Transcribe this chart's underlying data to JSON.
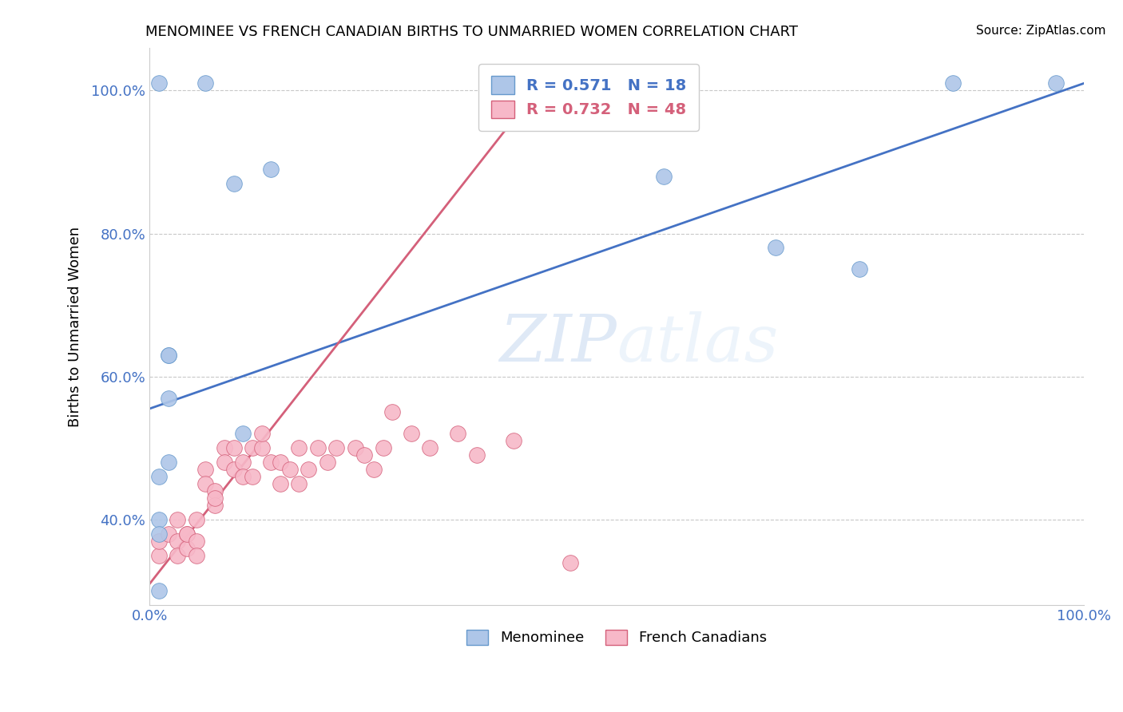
{
  "title": "MENOMINEE VS FRENCH CANADIAN BIRTHS TO UNMARRIED WOMEN CORRELATION CHART",
  "source_text": "Source: ZipAtlas.com",
  "ylabel": "Births to Unmarried Women",
  "watermark_zip": "ZIP",
  "watermark_atlas": "atlas",
  "menominee_R": "0.571",
  "menominee_N": "18",
  "french_R": "0.732",
  "french_N": "48",
  "menominee_color": "#aec6e8",
  "menominee_line_color": "#4472c4",
  "menominee_edge_color": "#6699cc",
  "french_color": "#f7b8c8",
  "french_line_color": "#d4607a",
  "french_edge_color": "#d4607a",
  "background_color": "#ffffff",
  "grid_color": "#c8c8c8",
  "legend_color": "#4472c4",
  "xlim": [
    0.0,
    1.0
  ],
  "ylim": [
    0.28,
    1.06
  ],
  "ytick_vals": [
    0.4,
    0.6,
    0.8,
    1.0
  ],
  "ytick_labels": [
    "40.0%",
    "60.0%",
    "80.0%",
    "100.0%"
  ],
  "xtick_vals": [
    0.0,
    1.0
  ],
  "xtick_labels": [
    "0.0%",
    "100.0%"
  ],
  "menominee_x": [
    0.01,
    0.06,
    0.09,
    0.13,
    0.02,
    0.02,
    0.02,
    0.02,
    0.01,
    0.01,
    0.1,
    0.01,
    0.01,
    0.55,
    0.67,
    0.76,
    0.86,
    0.97
  ],
  "menominee_y": [
    1.01,
    1.01,
    0.87,
    0.89,
    0.63,
    0.57,
    0.63,
    0.48,
    0.46,
    0.4,
    0.52,
    0.38,
    0.3,
    0.88,
    0.78,
    0.75,
    1.01,
    1.01
  ],
  "french_x": [
    0.01,
    0.01,
    0.02,
    0.03,
    0.03,
    0.03,
    0.04,
    0.04,
    0.04,
    0.05,
    0.05,
    0.05,
    0.06,
    0.06,
    0.07,
    0.07,
    0.07,
    0.08,
    0.08,
    0.09,
    0.09,
    0.1,
    0.1,
    0.11,
    0.11,
    0.12,
    0.12,
    0.13,
    0.14,
    0.14,
    0.15,
    0.16,
    0.16,
    0.17,
    0.18,
    0.19,
    0.2,
    0.22,
    0.23,
    0.24,
    0.25,
    0.26,
    0.28,
    0.3,
    0.33,
    0.35,
    0.39,
    0.45
  ],
  "french_y": [
    0.35,
    0.37,
    0.38,
    0.4,
    0.37,
    0.35,
    0.38,
    0.36,
    0.38,
    0.4,
    0.37,
    0.35,
    0.47,
    0.45,
    0.44,
    0.42,
    0.43,
    0.5,
    0.48,
    0.5,
    0.47,
    0.48,
    0.46,
    0.5,
    0.46,
    0.5,
    0.52,
    0.48,
    0.48,
    0.45,
    0.47,
    0.45,
    0.5,
    0.47,
    0.5,
    0.48,
    0.5,
    0.5,
    0.49,
    0.47,
    0.5,
    0.55,
    0.52,
    0.5,
    0.52,
    0.49,
    0.51,
    0.34
  ],
  "blue_line_x0": 0.0,
  "blue_line_y0": 0.555,
  "blue_line_x1": 1.0,
  "blue_line_y1": 1.01,
  "pink_line_x0": 0.0,
  "pink_line_y0": 0.31,
  "pink_line_x1": 0.42,
  "pink_line_y1": 1.01
}
